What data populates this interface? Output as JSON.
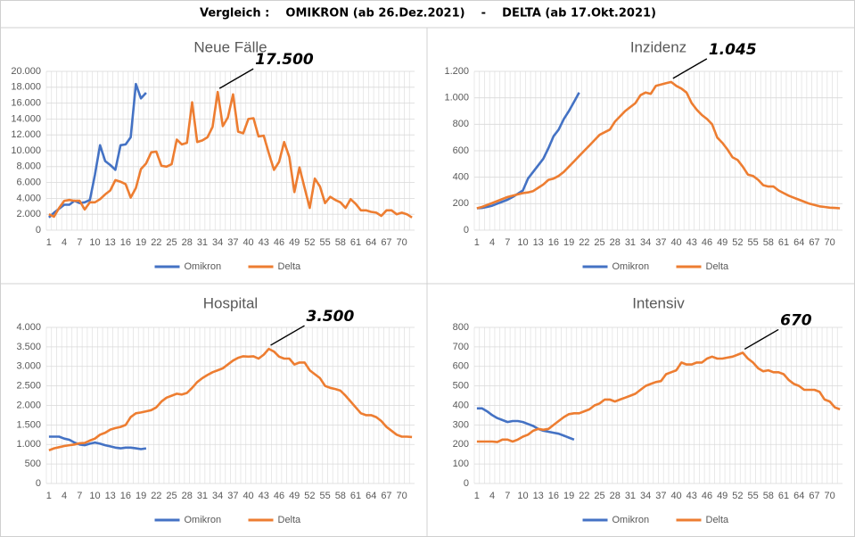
{
  "title": "Vergleich :    OMIKRON (ab 26.Dez.2021)    -    DELTA (ab 17.Okt.2021)",
  "chart_data": [
    {
      "type": "line",
      "title": "Neue Fälle",
      "annotation": "17.500",
      "categories": [
        1,
        null,
        null,
        4,
        null,
        null,
        7,
        null,
        null,
        10,
        null,
        null,
        13,
        null,
        null,
        16,
        null,
        null,
        19,
        null,
        null,
        22,
        null,
        null,
        25,
        null,
        null,
        28,
        null,
        null,
        31,
        null,
        null,
        34,
        null,
        null,
        37,
        null,
        null,
        40,
        null,
        null,
        43,
        null,
        null,
        46,
        null,
        null,
        49,
        null,
        null,
        52,
        null,
        null,
        55,
        null,
        null,
        58,
        null,
        null,
        61,
        null,
        null,
        64,
        null,
        null,
        67,
        null,
        null,
        70,
        null,
        null
      ],
      "ylim": [
        0,
        20000
      ],
      "yticks": [
        0,
        {
          "value": 2000,
          "label": "2.000"
        },
        {
          "value": 4000,
          "label": "4.000"
        },
        {
          "value": 6000,
          "label": "6.000"
        },
        {
          "value": 8000,
          "label": "8.000"
        },
        {
          "value": 10000,
          "label": "10.000"
        },
        {
          "value": 12000,
          "label": "12.000"
        },
        {
          "value": 14000,
          "label": "14.000"
        },
        {
          "value": 16000,
          "label": "16.000"
        },
        {
          "value": 18000,
          "label": "18.000"
        },
        {
          "value": 20000,
          "label": "20.000"
        }
      ],
      "grid": true,
      "legend": "bottom",
      "series": [
        {
          "name": "Omikron",
          "color": "#4472c4",
          "values": [
            1600,
            2200,
            2700,
            3200,
            3200,
            3700,
            3400,
            3500,
            3800,
            7000,
            10700,
            8700,
            8200,
            7600,
            10700,
            10800,
            11700,
            18400,
            16600,
            17300,
            null,
            null,
            null,
            null,
            null,
            null,
            null,
            null,
            null,
            null,
            null,
            null,
            null,
            null,
            null,
            null,
            null,
            null,
            null,
            null,
            null,
            null,
            null,
            null,
            null,
            null,
            null,
            null,
            null,
            null,
            null,
            null,
            null,
            null,
            null,
            null,
            null,
            null,
            null,
            null,
            null,
            null,
            null,
            null,
            null,
            null,
            null,
            null,
            null,
            null,
            null,
            null
          ]
        },
        {
          "name": "Delta",
          "color": "#ed7d31",
          "values": [
            2000,
            1700,
            2800,
            3700,
            3800,
            3700,
            3700,
            2600,
            3500,
            3500,
            3900,
            4500,
            5000,
            6300,
            6100,
            5800,
            4100,
            5300,
            7700,
            8400,
            9800,
            9900,
            8100,
            8000,
            8300,
            11400,
            10800,
            11000,
            16100,
            11100,
            11300,
            11700,
            13000,
            17400,
            13100,
            14200,
            17100,
            12400,
            12200,
            14000,
            14100,
            11800,
            11900,
            9700,
            7600,
            8600,
            11100,
            9200,
            4800,
            7900,
            5300,
            2800,
            6500,
            5500,
            3400,
            4200,
            3800,
            3500,
            2800,
            3900,
            3300,
            2500,
            2500,
            2300,
            2200,
            1800,
            2500,
            2500,
            2000,
            2200,
            2000,
            1600
          ]
        }
      ]
    },
    {
      "type": "line",
      "title": "Inzidenz",
      "annotation": "1.045",
      "categories": [
        1,
        null,
        null,
        4,
        null,
        null,
        7,
        null,
        null,
        10,
        null,
        null,
        13,
        null,
        null,
        16,
        null,
        null,
        19,
        null,
        null,
        22,
        null,
        null,
        25,
        null,
        null,
        28,
        null,
        null,
        31,
        null,
        null,
        34,
        null,
        null,
        37,
        null,
        null,
        40,
        null,
        null,
        43,
        null,
        null,
        46,
        null,
        null,
        49,
        null,
        null,
        52,
        null,
        null,
        55,
        null,
        null,
        58,
        null,
        null,
        61,
        null,
        null,
        64,
        null,
        null,
        67,
        null,
        null,
        70,
        null,
        null
      ],
      "ylim": [
        0,
        1200
      ],
      "yticks": [
        0,
        200,
        400,
        600,
        800,
        {
          "value": 1000,
          "label": "1.000"
        },
        {
          "value": 1200,
          "label": "1.200"
        }
      ],
      "grid": true,
      "legend": "bottom",
      "series": [
        {
          "name": "Omikron",
          "color": "#4472c4",
          "values": [
            165,
            168,
            175,
            185,
            200,
            215,
            230,
            250,
            275,
            300,
            390,
            440,
            490,
            540,
            620,
            710,
            760,
            840,
            900,
            970,
            1040,
            null,
            null,
            null,
            null,
            null,
            null,
            null,
            null,
            null,
            null,
            null,
            null,
            null,
            null,
            null,
            null,
            null,
            null,
            null,
            null,
            null,
            null,
            null,
            null,
            null,
            null,
            null,
            null,
            null,
            null,
            null,
            null,
            null,
            null,
            null,
            null,
            null,
            null,
            null,
            null,
            null,
            null,
            null,
            null,
            null,
            null,
            null,
            null,
            null,
            null,
            null
          ]
        },
        {
          "name": "Delta",
          "color": "#ed7d31",
          "values": [
            165,
            175,
            190,
            205,
            220,
            235,
            250,
            260,
            270,
            280,
            285,
            295,
            320,
            345,
            380,
            390,
            410,
            440,
            480,
            520,
            560,
            600,
            640,
            680,
            720,
            740,
            760,
            820,
            860,
            900,
            930,
            960,
            1020,
            1040,
            1030,
            1090,
            1100,
            1110,
            1120,
            1090,
            1070,
            1040,
            960,
            910,
            870,
            840,
            800,
            700,
            660,
            610,
            550,
            530,
            480,
            420,
            410,
            380,
            340,
            330,
            330,
            300,
            280,
            260,
            245,
            230,
            215,
            200,
            190,
            180,
            175,
            170,
            168,
            165
          ]
        }
      ]
    },
    {
      "type": "line",
      "title": "Hospital",
      "annotation": "3.500",
      "categories": [
        1,
        null,
        null,
        4,
        null,
        null,
        7,
        null,
        null,
        10,
        null,
        null,
        13,
        null,
        null,
        16,
        null,
        null,
        19,
        null,
        null,
        22,
        null,
        null,
        25,
        null,
        null,
        28,
        null,
        null,
        31,
        null,
        null,
        34,
        null,
        null,
        37,
        null,
        null,
        40,
        null,
        null,
        43,
        null,
        null,
        46,
        null,
        null,
        49,
        null,
        null,
        52,
        null,
        null,
        55,
        null,
        null,
        58,
        null,
        null,
        61,
        null,
        null,
        64,
        null,
        null,
        67,
        null,
        null,
        70,
        null,
        null
      ],
      "ylim": [
        0,
        4000
      ],
      "yticks": [
        0,
        500,
        {
          "value": 1000,
          "label": "1.000"
        },
        {
          "value": 1500,
          "label": "1.500"
        },
        {
          "value": 2000,
          "label": "2.000"
        },
        {
          "value": 2500,
          "label": "2.500"
        },
        {
          "value": 3000,
          "label": "3.000"
        },
        {
          "value": 3500,
          "label": "3.500"
        },
        {
          "value": 4000,
          "label": "4.000"
        }
      ],
      "grid": true,
      "legend": "bottom",
      "series": [
        {
          "name": "Omikron",
          "color": "#4472c4",
          "values": [
            1200,
            1200,
            1200,
            1150,
            1120,
            1050,
            1000,
            980,
            1020,
            1050,
            1020,
            980,
            950,
            920,
            900,
            920,
            920,
            900,
            880,
            900,
            null,
            null,
            null,
            null,
            null,
            null,
            null,
            null,
            null,
            null,
            null,
            null,
            null,
            null,
            null,
            null,
            null,
            null,
            null,
            null,
            null,
            null,
            null,
            null,
            null,
            null,
            null,
            null,
            null,
            null,
            null,
            null,
            null,
            null,
            null,
            null,
            null,
            null,
            null,
            null,
            null,
            null,
            null,
            null,
            null,
            null,
            null,
            null,
            null,
            null,
            null,
            null
          ]
        },
        {
          "name": "Delta",
          "color": "#ed7d31",
          "values": [
            850,
            900,
            930,
            960,
            980,
            1000,
            1030,
            1040,
            1100,
            1150,
            1250,
            1300,
            1380,
            1420,
            1450,
            1500,
            1700,
            1800,
            1820,
            1850,
            1880,
            1950,
            2100,
            2200,
            2250,
            2300,
            2280,
            2320,
            2450,
            2600,
            2700,
            2780,
            2850,
            2900,
            2950,
            3050,
            3150,
            3220,
            3260,
            3250,
            3260,
            3200,
            3300,
            3450,
            3380,
            3250,
            3200,
            3200,
            3050,
            3100,
            3100,
            2900,
            2800,
            2700,
            2500,
            2450,
            2420,
            2380,
            2250,
            2100,
            1950,
            1800,
            1750,
            1750,
            1700,
            1600,
            1450,
            1350,
            1250,
            1200,
            1200,
            1190
          ]
        }
      ]
    },
    {
      "type": "line",
      "title": "Intensiv",
      "annotation": "670",
      "categories": [
        1,
        null,
        null,
        4,
        null,
        null,
        7,
        null,
        null,
        10,
        null,
        null,
        13,
        null,
        null,
        16,
        null,
        null,
        19,
        null,
        null,
        22,
        null,
        null,
        25,
        null,
        null,
        28,
        null,
        null,
        31,
        null,
        null,
        34,
        null,
        null,
        37,
        null,
        null,
        40,
        null,
        null,
        43,
        null,
        null,
        46,
        null,
        null,
        49,
        null,
        null,
        52,
        null,
        null,
        55,
        null,
        null,
        58,
        null,
        null,
        61,
        null,
        null,
        64,
        null,
        null,
        67,
        null,
        null,
        70,
        null,
        null
      ],
      "ylim": [
        0,
        800
      ],
      "yticks": [
        0,
        100,
        200,
        300,
        400,
        500,
        600,
        700,
        800
      ],
      "grid": true,
      "legend": "bottom",
      "series": [
        {
          "name": "Omikron",
          "color": "#4472c4",
          "values": [
            385,
            385,
            370,
            350,
            335,
            325,
            315,
            320,
            320,
            315,
            305,
            295,
            280,
            270,
            265,
            260,
            255,
            245,
            235,
            225,
            null,
            null,
            null,
            null,
            null,
            null,
            null,
            null,
            null,
            null,
            null,
            null,
            null,
            null,
            null,
            null,
            null,
            null,
            null,
            null,
            null,
            null,
            null,
            null,
            null,
            null,
            null,
            null,
            null,
            null,
            null,
            null,
            null,
            null,
            null,
            null,
            null,
            null,
            null,
            null,
            null,
            null,
            null,
            null,
            null,
            null,
            null,
            null,
            null,
            null,
            null,
            null
          ]
        },
        {
          "name": "Delta",
          "color": "#ed7d31",
          "values": [
            215,
            215,
            215,
            215,
            212,
            225,
            225,
            215,
            225,
            240,
            250,
            270,
            280,
            275,
            280,
            300,
            320,
            340,
            355,
            360,
            360,
            370,
            380,
            400,
            410,
            430,
            430,
            420,
            430,
            440,
            450,
            460,
            480,
            500,
            510,
            520,
            525,
            560,
            570,
            580,
            620,
            610,
            610,
            620,
            620,
            640,
            650,
            640,
            640,
            645,
            650,
            660,
            670,
            640,
            620,
            590,
            575,
            580,
            570,
            570,
            560,
            530,
            510,
            500,
            480,
            480,
            480,
            470,
            430,
            420,
            390,
            380
          ]
        }
      ]
    }
  ]
}
